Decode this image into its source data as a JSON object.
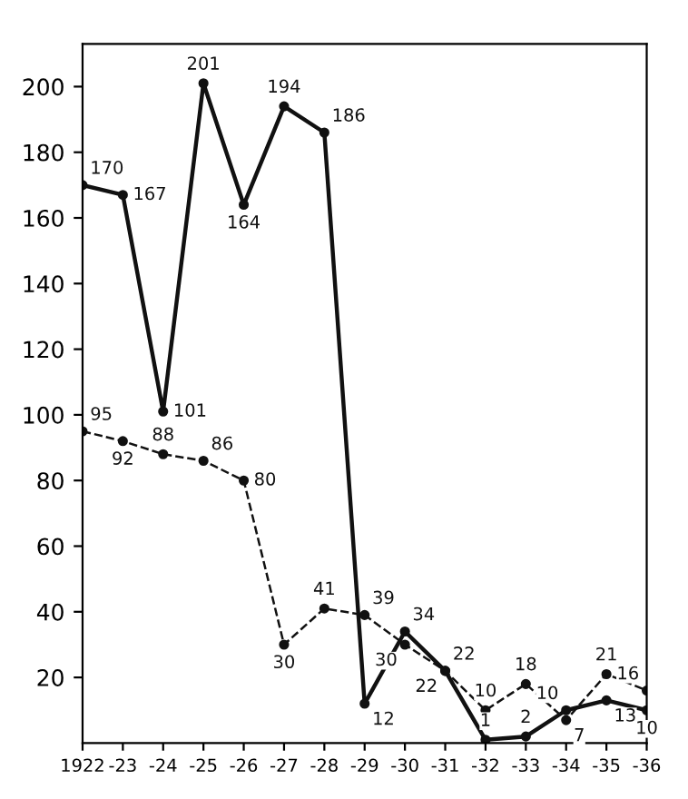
{
  "chart_data": {
    "type": "line",
    "categories": [
      "1922",
      "-23",
      "-24",
      "-25",
      "-26",
      "-27",
      "-28",
      "-29",
      "-30",
      "-31",
      "-32",
      "-33",
      "-34",
      "-35",
      "-36"
    ],
    "series": [
      {
        "color": "#111111",
        "line_style": "solid",
        "values": [
          170,
          167,
          101,
          201,
          164,
          194,
          186,
          12,
          34,
          22,
          1,
          2,
          10,
          13,
          10
        ]
      },
      {
        "color": "#111111",
        "line_style": "dashed",
        "values": [
          95,
          92,
          88,
          86,
          80,
          30,
          41,
          39,
          30,
          22,
          10,
          18,
          7,
          21,
          16
        ]
      }
    ],
    "ylim": [
      0,
      213
    ],
    "yticks": [
      20,
      40,
      60,
      80,
      100,
      120,
      140,
      160,
      180,
      200
    ],
    "marker": "circle",
    "data_labels": true,
    "grid": false
  }
}
